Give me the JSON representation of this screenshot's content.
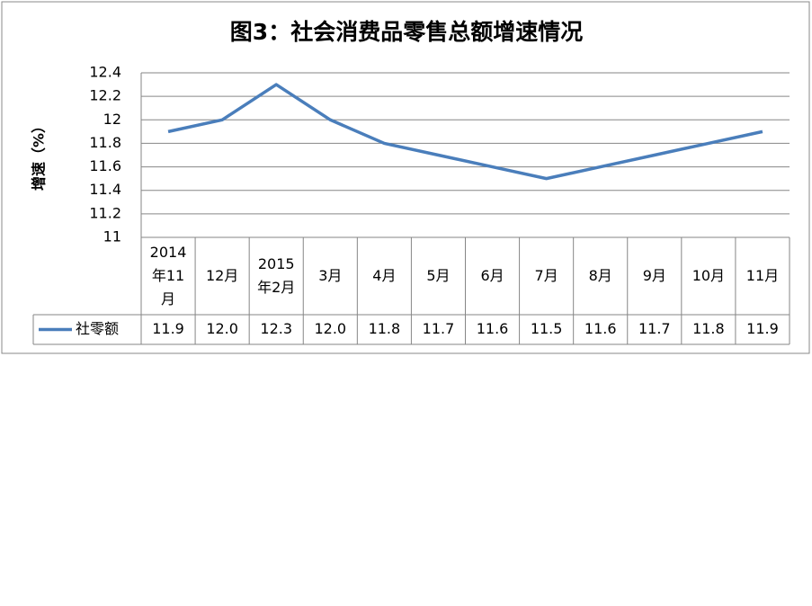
{
  "chart_data": {
    "type": "line",
    "title": "图3：社会消费品零售总额增速情况",
    "y_label": "增速（%）",
    "categories": [
      "2014年11月",
      "12月",
      "2015年2月",
      "3月",
      "4月",
      "5月",
      "6月",
      "7月",
      "8月",
      "9月",
      "10月",
      "11月"
    ],
    "series": [
      {
        "name": "社零额",
        "color": "#4a7ebb",
        "values": [
          11.9,
          12,
          12.3,
          12,
          11.8,
          11.7,
          11.6,
          11.5,
          11.6,
          11.7,
          11.8,
          11.9
        ],
        "value_labels": [
          "11.9",
          "12.0",
          "12.3",
          "12.0",
          "11.8",
          "11.7",
          "11.6",
          "11.5",
          "11.6",
          "11.7",
          "11.8",
          "11.9"
        ]
      }
    ],
    "ylim": [
      11,
      12.4
    ],
    "yticks": [
      11,
      11.2,
      11.4,
      11.6,
      11.8,
      12,
      12.2,
      12.4
    ],
    "grid": true
  }
}
